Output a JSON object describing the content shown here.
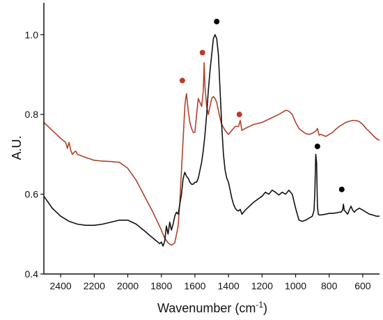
{
  "chart_data": {
    "type": "line",
    "title": "",
    "xlabel": "Wavenumber (cm",
    "xlabel_sup": "-1",
    "xlabel_suffix": ")",
    "ylabel": "A.U.",
    "xlim": [
      2500,
      500
    ],
    "ylim": [
      0.4,
      1.08
    ],
    "x_reversed": true,
    "x_ticks": [
      2400,
      2200,
      2000,
      1800,
      1600,
      1400,
      1200,
      1000,
      800,
      600
    ],
    "y_ticks": [
      0.4,
      0.6,
      0.8,
      1.0
    ],
    "x_tick_labels": [
      "2400",
      "2200",
      "2000",
      "1800",
      "1600",
      "1400",
      "1200",
      "1000",
      "800",
      "600"
    ],
    "y_tick_labels": [
      "0.4",
      "0.6",
      "0.8",
      "1.0"
    ],
    "grid": false,
    "legend": "none",
    "series": [
      {
        "color": "#b0412a",
        "x": [
          2500,
          2450,
          2400,
          2370,
          2360,
          2350,
          2340,
          2330,
          2320,
          2310,
          2300,
          2250,
          2200,
          2150,
          2100,
          2050,
          2000,
          1950,
          1900,
          1850,
          1800,
          1780,
          1760,
          1740,
          1720,
          1700,
          1690,
          1680,
          1670,
          1660,
          1655,
          1650,
          1640,
          1630,
          1620,
          1610,
          1600,
          1590,
          1580,
          1570,
          1560,
          1550,
          1545,
          1540,
          1530,
          1520,
          1510,
          1500,
          1490,
          1480,
          1470,
          1460,
          1450,
          1440,
          1420,
          1400,
          1380,
          1360,
          1340,
          1330,
          1320,
          1300,
          1250,
          1200,
          1150,
          1100,
          1080,
          1060,
          1050,
          1040,
          1020,
          1000,
          980,
          960,
          940,
          920,
          900,
          880,
          870,
          860,
          850,
          820,
          800,
          780,
          760,
          740,
          720,
          700,
          680,
          660,
          640,
          620,
          600,
          580,
          560,
          540,
          520,
          500
        ],
        "y": [
          0.78,
          0.76,
          0.74,
          0.73,
          0.715,
          0.73,
          0.71,
          0.7,
          0.705,
          0.708,
          0.7,
          0.692,
          0.685,
          0.683,
          0.682,
          0.68,
          0.665,
          0.635,
          0.595,
          0.555,
          0.51,
          0.49,
          0.478,
          0.472,
          0.478,
          0.52,
          0.58,
          0.66,
          0.74,
          0.82,
          0.84,
          0.852,
          0.81,
          0.78,
          0.765,
          0.755,
          0.755,
          0.8,
          0.84,
          0.83,
          0.82,
          0.86,
          0.93,
          0.87,
          0.82,
          0.8,
          0.82,
          0.84,
          0.845,
          0.84,
          0.83,
          0.81,
          0.79,
          0.775,
          0.76,
          0.75,
          0.76,
          0.77,
          0.77,
          0.785,
          0.76,
          0.765,
          0.775,
          0.78,
          0.79,
          0.8,
          0.805,
          0.81,
          0.81,
          0.808,
          0.8,
          0.78,
          0.765,
          0.758,
          0.752,
          0.75,
          0.753,
          0.758,
          0.765,
          0.748,
          0.75,
          0.745,
          0.75,
          0.755,
          0.763,
          0.77,
          0.775,
          0.78,
          0.783,
          0.785,
          0.785,
          0.782,
          0.775,
          0.765,
          0.757,
          0.748,
          0.74,
          0.735
        ]
      },
      {
        "color": "#111111",
        "x": [
          2500,
          2450,
          2400,
          2350,
          2300,
          2250,
          2200,
          2150,
          2100,
          2050,
          2000,
          1950,
          1900,
          1870,
          1850,
          1830,
          1810,
          1800,
          1790,
          1780,
          1770,
          1760,
          1750,
          1740,
          1730,
          1720,
          1710,
          1700,
          1690,
          1680,
          1670,
          1660,
          1650,
          1640,
          1630,
          1620,
          1610,
          1600,
          1590,
          1580,
          1570,
          1560,
          1550,
          1540,
          1530,
          1520,
          1510,
          1500,
          1490,
          1480,
          1470,
          1460,
          1450,
          1440,
          1430,
          1420,
          1410,
          1400,
          1390,
          1380,
          1370,
          1360,
          1350,
          1340,
          1330,
          1320,
          1300,
          1250,
          1200,
          1180,
          1160,
          1140,
          1120,
          1100,
          1080,
          1060,
          1040,
          1020,
          1000,
          980,
          960,
          940,
          920,
          900,
          890,
          885,
          880,
          875,
          870,
          865,
          860,
          850,
          820,
          800,
          780,
          760,
          740,
          730,
          720,
          715,
          710,
          700,
          690,
          680,
          670,
          660,
          650,
          640,
          620,
          600,
          580,
          560,
          540,
          520,
          500
        ],
        "y": [
          0.595,
          0.565,
          0.545,
          0.532,
          0.525,
          0.522,
          0.522,
          0.525,
          0.53,
          0.535,
          0.535,
          0.525,
          0.508,
          0.497,
          0.49,
          0.483,
          0.476,
          0.48,
          0.47,
          0.482,
          0.52,
          0.5,
          0.53,
          0.51,
          0.525,
          0.545,
          0.555,
          0.55,
          0.575,
          0.6,
          0.64,
          0.655,
          0.645,
          0.64,
          0.63,
          0.625,
          0.625,
          0.63,
          0.63,
          0.64,
          0.66,
          0.68,
          0.71,
          0.75,
          0.8,
          0.86,
          0.91,
          0.95,
          0.99,
          1.0,
          0.99,
          0.95,
          0.86,
          0.77,
          0.7,
          0.66,
          0.64,
          0.63,
          0.61,
          0.59,
          0.575,
          0.565,
          0.56,
          0.558,
          0.562,
          0.55,
          0.56,
          0.58,
          0.595,
          0.605,
          0.6,
          0.61,
          0.605,
          0.598,
          0.605,
          0.6,
          0.61,
          0.6,
          0.565,
          0.535,
          0.532,
          0.535,
          0.54,
          0.545,
          0.56,
          0.61,
          0.7,
          0.68,
          0.57,
          0.55,
          0.548,
          0.548,
          0.55,
          0.552,
          0.552,
          0.553,
          0.555,
          0.555,
          0.56,
          0.575,
          0.56,
          0.555,
          0.55,
          0.56,
          0.57,
          0.56,
          0.555,
          0.56,
          0.565,
          0.56,
          0.555,
          0.55,
          0.548,
          0.545,
          0.545
        ]
      }
    ],
    "markers": [
      {
        "x": 1675,
        "y": 0.885,
        "color": "#c0392b"
      },
      {
        "x": 1555,
        "y": 0.955,
        "color": "#c0392b"
      },
      {
        "x": 1335,
        "y": 0.8,
        "color": "#c0392b"
      },
      {
        "x": 1470,
        "y": 1.033,
        "color": "#000000"
      },
      {
        "x": 870,
        "y": 0.72,
        "color": "#000000"
      },
      {
        "x": 725,
        "y": 0.612,
        "color": "#000000"
      }
    ]
  }
}
